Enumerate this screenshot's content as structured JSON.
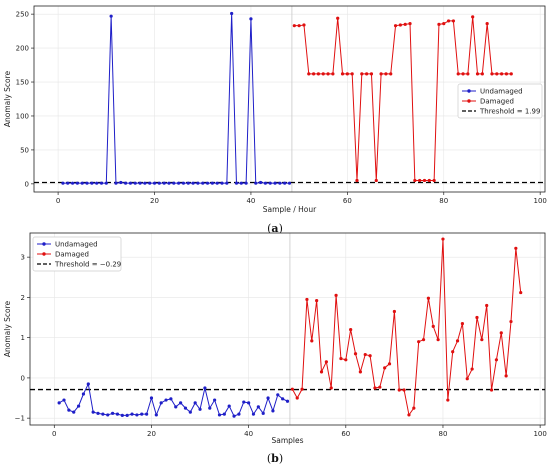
{
  "chart_data": [
    {
      "type": "line",
      "caption_prefix": "(",
      "caption_letter": "a",
      "caption_suffix": ")",
      "xlabel": "Sample / Hour",
      "ylabel": "Anomaly Score",
      "xlim": [
        -5,
        101
      ],
      "ylim": [
        -12,
        262
      ],
      "xticks": [
        0,
        20,
        40,
        60,
        80,
        100
      ],
      "yticks": [
        0,
        50,
        100,
        150,
        200,
        250
      ],
      "grid": true,
      "legend_placement": "center-right",
      "divider_x": 48.5,
      "threshold": {
        "name": "Threshold = 1.99",
        "value": 1.99,
        "color": "#000000"
      },
      "series": [
        {
          "name": "Undamaged",
          "color": "#1f1fc8",
          "x_start": 1,
          "values": [
            1,
            1,
            1,
            1,
            1,
            1,
            1,
            1,
            1,
            1,
            247,
            1,
            2,
            1,
            1,
            1,
            1,
            1,
            1,
            1,
            1,
            1,
            1,
            1,
            1,
            1,
            1,
            1,
            1,
            1,
            1,
            1,
            1,
            1,
            1,
            251,
            1,
            1,
            1,
            243,
            1,
            2,
            1,
            1,
            1,
            1,
            1,
            1
          ]
        },
        {
          "name": "Damaged",
          "color": "#e01010",
          "x_start": 49,
          "values": [
            233,
            233,
            234,
            162,
            162,
            162,
            162,
            162,
            162,
            244,
            162,
            162,
            162,
            5,
            162,
            162,
            162,
            5,
            162,
            162,
            162,
            233,
            234,
            235,
            236,
            5,
            5,
            5,
            5,
            5,
            235,
            236,
            240,
            240,
            162,
            162,
            162,
            246,
            162,
            162,
            236,
            162,
            162,
            162,
            162,
            162
          ]
        }
      ]
    },
    {
      "type": "line",
      "caption_prefix": "(",
      "caption_letter": "b",
      "caption_suffix": ")",
      "xlabel": "Samples",
      "ylabel": "Anomaly Score",
      "xlim": [
        -5,
        101
      ],
      "ylim": [
        -1.17,
        3.6
      ],
      "xticks": [
        0,
        20,
        40,
        60,
        80,
        100
      ],
      "yticks": [
        -1,
        0,
        1,
        2,
        3
      ],
      "grid": true,
      "legend_placement": "top-left",
      "divider_x": 48.5,
      "threshold": {
        "name": "Threshold = −0.29",
        "value": -0.29,
        "color": "#000000"
      },
      "series": [
        {
          "name": "Undamaged",
          "color": "#1f1fc8",
          "x_start": 1,
          "values": [
            -0.62,
            -0.55,
            -0.8,
            -0.85,
            -0.7,
            -0.4,
            -0.15,
            -0.85,
            -0.88,
            -0.9,
            -0.92,
            -0.88,
            -0.9,
            -0.93,
            -0.93,
            -0.9,
            -0.92,
            -0.9,
            -0.9,
            -0.5,
            -0.92,
            -0.62,
            -0.55,
            -0.52,
            -0.72,
            -0.62,
            -0.75,
            -0.85,
            -0.62,
            -0.78,
            -0.25,
            -0.75,
            -0.55,
            -0.92,
            -0.9,
            -0.7,
            -0.95,
            -0.9,
            -0.6,
            -0.62,
            -0.9,
            -0.72,
            -0.88,
            -0.5,
            -0.82,
            -0.42,
            -0.52,
            -0.58
          ]
        },
        {
          "name": "Damaged",
          "color": "#e01010",
          "x_start": 49,
          "values": [
            -0.28,
            -0.5,
            -0.28,
            1.95,
            0.92,
            1.92,
            0.15,
            0.4,
            -0.25,
            2.05,
            0.48,
            0.45,
            1.2,
            0.6,
            0.15,
            0.58,
            0.55,
            -0.25,
            -0.23,
            0.25,
            0.35,
            1.65,
            -0.3,
            -0.3,
            -0.92,
            -0.75,
            0.9,
            0.95,
            1.98,
            1.28,
            0.95,
            3.45,
            -0.55,
            0.65,
            0.92,
            1.35,
            -0.02,
            0.22,
            1.5,
            0.95,
            1.8,
            -0.3,
            0.45,
            1.12,
            0.05,
            1.4,
            3.22,
            2.12
          ]
        }
      ]
    }
  ]
}
